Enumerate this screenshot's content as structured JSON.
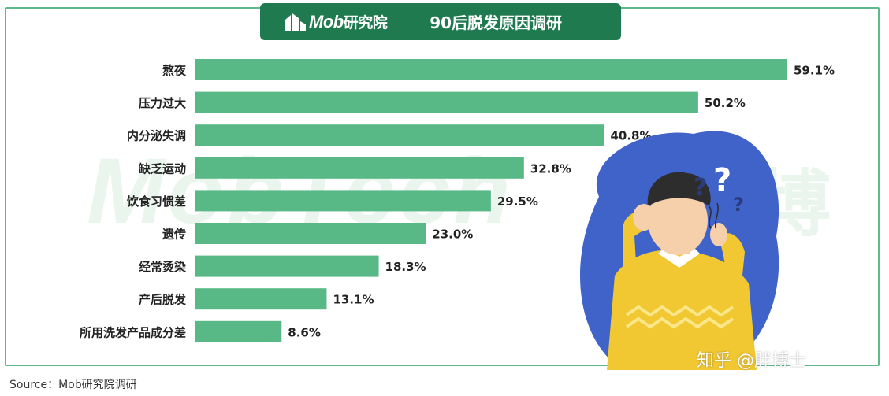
{
  "header": {
    "logo_text": "Mob",
    "logo_text_cn": "研究院",
    "title": "90后脱发原因调研"
  },
  "watermark": "MobTech",
  "watermark_cn": "袤博",
  "source": "Source：Mob研究院调研",
  "zhihu_watermark": "知乎 @胖博士",
  "colors": {
    "bar": "#58b986",
    "header": "#1f7a50",
    "frame": "#5fb98a"
  },
  "chart_data": {
    "type": "bar",
    "orientation": "horizontal",
    "title": "90后脱发原因调研",
    "categories": [
      "熬夜",
      "压力过大",
      "内分泌失调",
      "缺乏运动",
      "饮食习惯差",
      "遗传",
      "经常烫染",
      "产后脱发",
      "所用洗发产品成分差"
    ],
    "values": [
      59.1,
      50.2,
      40.8,
      32.8,
      29.5,
      23.0,
      18.3,
      13.1,
      8.6
    ],
    "value_labels": [
      "59.1%",
      "50.2%",
      "40.8%",
      "32.8%",
      "29.5%",
      "23.0%",
      "18.3%",
      "13.1%",
      "8.6%"
    ],
    "unit": "%",
    "grid": false,
    "legend": "none"
  }
}
